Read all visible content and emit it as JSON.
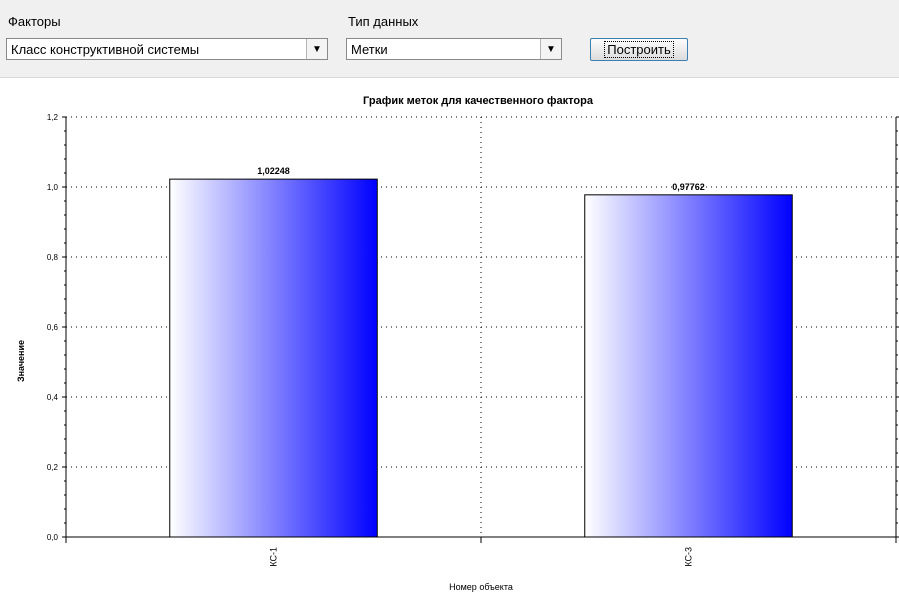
{
  "controls": {
    "factors_label": "Факторы",
    "factors_value": "Класс конструктивной системы",
    "datatype_label": "Тип данных",
    "datatype_value": "Метки",
    "build_button": "Построить"
  },
  "chart_data": {
    "type": "bar",
    "title": "График меток для качественного фактора",
    "xlabel": "Номер объекта",
    "ylabel": "Значение",
    "categories": [
      "КС-1",
      "КС-3"
    ],
    "values": [
      1.02248,
      0.97762
    ],
    "value_labels": [
      "1,02248",
      "0,97762"
    ],
    "ylim": [
      0,
      1.2
    ],
    "yticks": [
      0,
      0.2,
      0.4,
      0.6,
      0.8,
      1.0,
      1.2
    ],
    "ytick_labels": [
      "0,0",
      "0,2",
      "0,4",
      "0,6",
      "0,8",
      "1,0",
      "1,2"
    ],
    "grid": true,
    "bar_gradient": [
      "#ffffff",
      "#0000ff"
    ]
  }
}
